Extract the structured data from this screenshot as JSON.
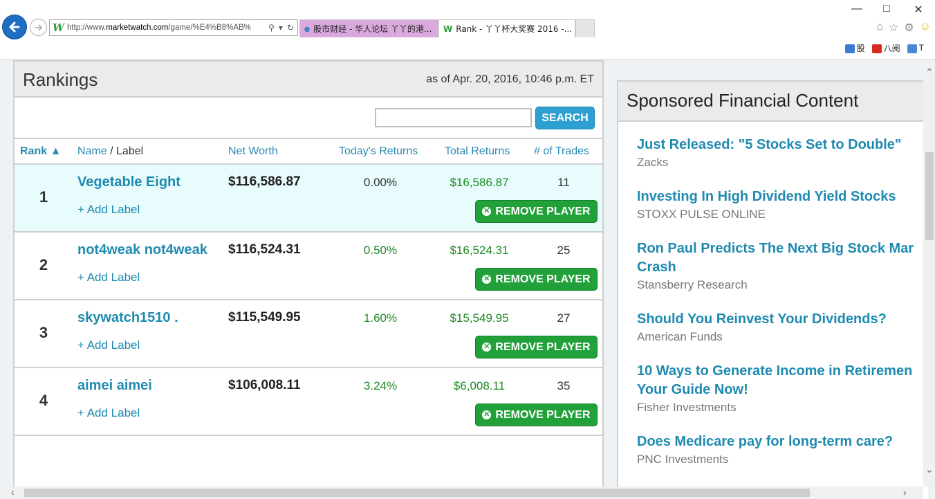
{
  "browser": {
    "url_prefix": "http://www.",
    "url_domain": "marketwatch.com",
    "url_path": "/game/%E4%B8%AB%",
    "tabs": [
      {
        "label": "股市财经 - 华人论坛 丫丫的港..."
      },
      {
        "label": "Rank - 丫丫杯大奖赛 2016 -..."
      }
    ],
    "favorites": [
      "股",
      "八阅",
      "T"
    ]
  },
  "rankings": {
    "title": "Rankings",
    "as_of": "as of Apr. 20, 2016, 10:46 p.m. ET",
    "search_button": "SEARCH",
    "search_value": "",
    "columns": {
      "rank": "Rank",
      "name": "Name",
      "label": " / Label",
      "net_worth": "Net Worth",
      "today": "Today's Returns",
      "total": "Total Returns",
      "trades": "# of Trades"
    },
    "add_label": "+ Add Label",
    "remove_label": "REMOVE PLAYER",
    "rows": [
      {
        "rank": "1",
        "name": "Vegetable Eight",
        "net_worth": "$116,586.87",
        "today": "0.00%",
        "total": "$16,586.87",
        "trades": "11"
      },
      {
        "rank": "2",
        "name": "not4weak not4weak",
        "net_worth": "$116,524.31",
        "today": "0.50%",
        "total": "$16,524.31",
        "trades": "25"
      },
      {
        "rank": "3",
        "name": "skywatch1510 .",
        "net_worth": "$115,549.95",
        "today": "1.60%",
        "total": "$15,549.95",
        "trades": "27"
      },
      {
        "rank": "4",
        "name": "aimei aimei",
        "net_worth": "$106,008.11",
        "today": "3.24%",
        "total": "$6,008.11",
        "trades": "35"
      }
    ]
  },
  "sponsored": {
    "title": "Sponsored Financial Content",
    "items": [
      {
        "l1": "Just Released: \"5 Stocks Set to Double\"",
        "l2": "",
        "source": "Zacks"
      },
      {
        "l1": "Investing In High Dividend Yield Stocks",
        "l2": "",
        "source": "STOXX PULSE ONLINE"
      },
      {
        "l1": "Ron Paul Predicts The Next Big Stock Mar",
        "l2": "Crash",
        "source": "Stansberry Research"
      },
      {
        "l1": "Should You Reinvest Your Dividends?",
        "l2": "",
        "source": "American Funds"
      },
      {
        "l1": "10 Ways to Generate Income in Retiremen",
        "l2": "Your Guide Now!",
        "source": "Fisher Investments"
      },
      {
        "l1": "Does Medicare pay for long-term care?",
        "l2": "",
        "source": "PNC Investments"
      }
    ]
  },
  "colors": {
    "link": "#1e8ab0",
    "positive": "#1e8a22",
    "remove_button": "#22a13a",
    "search_button": "#2da0d1",
    "highlight_row": "#e8fbfd"
  },
  "icons": [
    "back-arrow-icon",
    "forward-arrow-icon",
    "search-icon",
    "refresh-icon",
    "home-icon",
    "star-icon",
    "gear-icon",
    "smiley-icon",
    "close-icon",
    "remove-circle-icon",
    "sort-asc-icon"
  ]
}
